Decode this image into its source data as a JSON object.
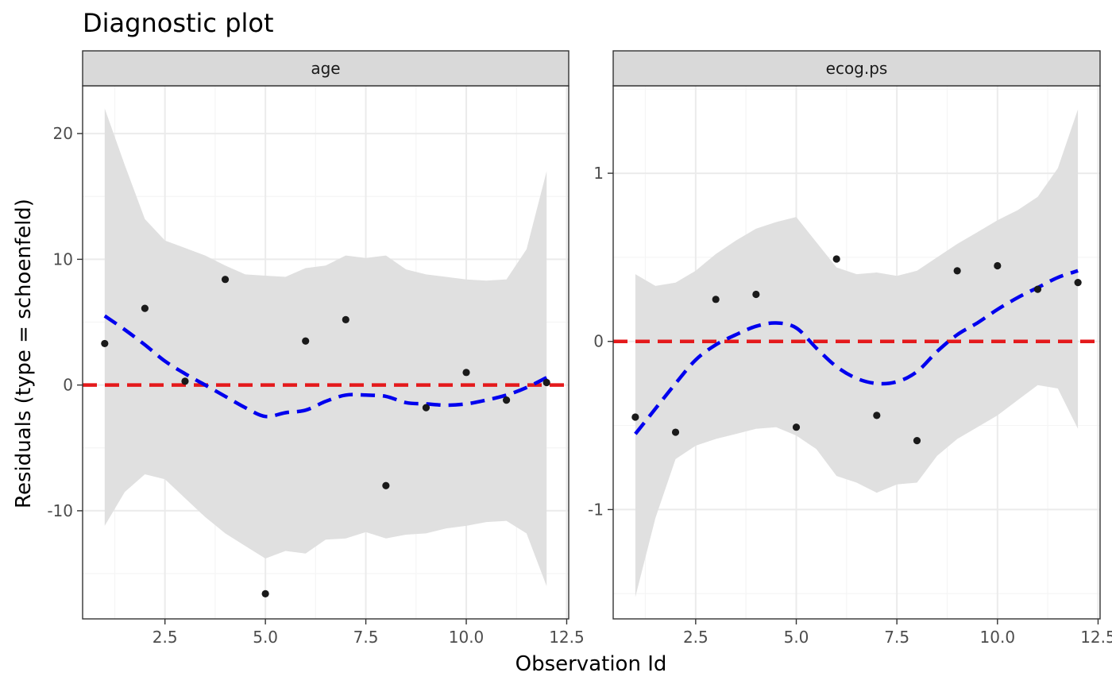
{
  "title": "Diagnostic plot",
  "colors": {
    "zero_line": "#e41a1c",
    "smooth_line": "#0000ee",
    "band": "#e0e0e0",
    "point": "#1a1a1a",
    "strip_bg": "#d9d9d9",
    "grid_major": "#ebebeb",
    "grid_minor": "#f5f5f5"
  },
  "chart_data": {
    "type": "scatter",
    "title": "Diagnostic plot",
    "xlabel": "Observation Id",
    "ylabel": "Residuals (type = schoenfeld)",
    "xlim": [
      0.45,
      12.55
    ],
    "xticks": [
      2.5,
      5.0,
      7.5,
      10.0,
      12.5
    ],
    "xtick_labels": [
      "2.5",
      "5.0",
      "7.5",
      "10.0",
      "12.5"
    ],
    "grid": true,
    "reference_line": {
      "y": 0,
      "style": "dashed",
      "color": "#e41a1c"
    },
    "panels": [
      {
        "strip": "age",
        "ylim": [
          -18.6,
          23.8
        ],
        "yticks": [
          -10,
          0,
          10,
          20
        ],
        "ytick_labels": [
          "-10",
          "0",
          "10",
          "20"
        ],
        "points": {
          "x": [
            1,
            2,
            3,
            4,
            5,
            6,
            7,
            8,
            9,
            10,
            11,
            12
          ],
          "y": [
            3.3,
            6.1,
            0.3,
            8.4,
            -16.6,
            3.5,
            5.2,
            -8.0,
            -1.8,
            1.0,
            -1.2,
            0.2
          ]
        },
        "smooth": {
          "x": [
            1,
            1.5,
            2,
            2.5,
            3,
            3.5,
            4,
            4.5,
            5,
            5.5,
            6,
            6.5,
            7,
            7.5,
            8,
            8.5,
            9,
            9.5,
            10,
            10.5,
            11,
            11.5,
            12
          ],
          "y": [
            5.5,
            4.4,
            3.2,
            1.9,
            0.9,
            0.0,
            -0.9,
            -1.8,
            -2.5,
            -2.2,
            -2.0,
            -1.3,
            -0.8,
            -0.8,
            -0.9,
            -1.4,
            -1.5,
            -1.6,
            -1.5,
            -1.2,
            -0.8,
            -0.2,
            0.6
          ],
          "lower": [
            -11.2,
            -8.5,
            -7.1,
            -7.5,
            -9.0,
            -10.5,
            -11.8,
            -12.8,
            -13.8,
            -13.2,
            -13.4,
            -12.3,
            -12.2,
            -11.7,
            -12.2,
            -11.9,
            -11.8,
            -11.4,
            -11.2,
            -10.9,
            -10.8,
            -11.8,
            -16.0
          ],
          "upper": [
            22.0,
            17.5,
            13.2,
            11.5,
            10.9,
            10.3,
            9.5,
            8.8,
            8.7,
            8.6,
            9.3,
            9.5,
            10.3,
            10.1,
            10.3,
            9.2,
            8.8,
            8.6,
            8.4,
            8.3,
            8.4,
            10.8,
            17.0
          ]
        }
      },
      {
        "strip": "ecog.ps",
        "ylim": [
          -1.65,
          1.52
        ],
        "yticks": [
          -1,
          0,
          1
        ],
        "ytick_labels": [
          "-1",
          "0",
          "1"
        ],
        "points": {
          "x": [
            1,
            2,
            3,
            4,
            5,
            6,
            7,
            8,
            9,
            10,
            11,
            12
          ],
          "y": [
            -0.45,
            -0.54,
            0.25,
            0.28,
            -0.51,
            0.49,
            -0.44,
            -0.59,
            0.42,
            0.45,
            0.31,
            0.35
          ]
        },
        "smooth": {
          "x": [
            1,
            1.5,
            2,
            2.5,
            3,
            3.5,
            4,
            4.5,
            5,
            5.5,
            6,
            6.5,
            7,
            7.5,
            8,
            8.5,
            9,
            9.5,
            10,
            10.5,
            11,
            11.5,
            12
          ],
          "y": [
            -0.55,
            -0.4,
            -0.25,
            -0.11,
            -0.02,
            0.04,
            0.09,
            0.11,
            0.08,
            -0.04,
            -0.15,
            -0.22,
            -0.25,
            -0.24,
            -0.18,
            -0.06,
            0.04,
            0.11,
            0.19,
            0.26,
            0.32,
            0.38,
            0.42
          ],
          "lower": [
            -1.52,
            -1.05,
            -0.7,
            -0.62,
            -0.58,
            -0.55,
            -0.52,
            -0.51,
            -0.56,
            -0.64,
            -0.8,
            -0.84,
            -0.9,
            -0.85,
            -0.84,
            -0.68,
            -0.58,
            -0.51,
            -0.44,
            -0.35,
            -0.26,
            -0.28,
            -0.52
          ],
          "upper": [
            0.4,
            0.33,
            0.35,
            0.42,
            0.52,
            0.6,
            0.67,
            0.71,
            0.74,
            0.59,
            0.44,
            0.4,
            0.41,
            0.39,
            0.42,
            0.5,
            0.58,
            0.65,
            0.72,
            0.78,
            0.86,
            1.03,
            1.38
          ]
        }
      }
    ]
  }
}
